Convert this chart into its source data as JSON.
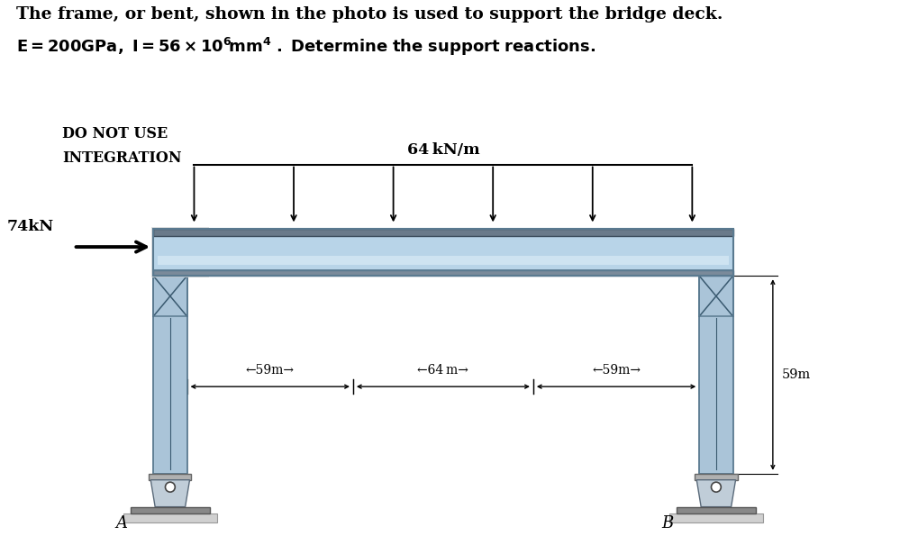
{
  "title_line1": "The frame, or bent, shown in the photo is used to support the bridge deck.",
  "title_line2_plain": "E = 200GPa, I = 56 × 10",
  "title_line2_sup": "6",
  "title_line2_italic": "mm",
  "title_line2_sup2": "4",
  "title_line2_end": " . Determine the support reactions.",
  "do_not_use_line1": "DO NOT USE",
  "do_not_use_line2": "INTEGRATION",
  "load_label": "64 kN/m",
  "force_label": "74kN",
  "dim_left": "←59m→",
  "dim_mid": "←————64 m————→",
  "dim_right1": "←59m→",
  "dim_right2": "59m",
  "label_A": "A",
  "label_B": "B",
  "bg_color": "#ffffff",
  "beam_fill_color": "#b8d4e8",
  "beam_top_color": "#6a7a8a",
  "beam_mid_color": "#c8dce8",
  "column_fill": "#aac4d8",
  "column_edge": "#5a7a90",
  "column_dark_edge": "#3a5a70",
  "base_top_color": "#c8c8c8",
  "base_mid_color": "#d8d8d8",
  "base_bot_color": "#b8b8b8",
  "gray_box_color": "#e0e0e0",
  "fig_width": 10.09,
  "fig_height": 5.95,
  "n_load_arrows": 6
}
